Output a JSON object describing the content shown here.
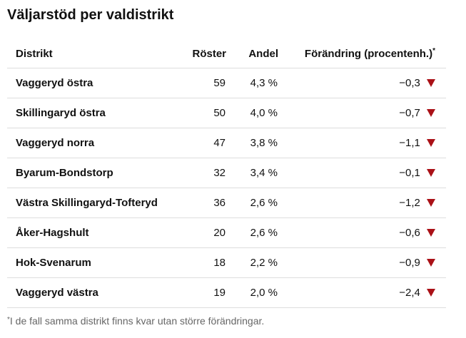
{
  "page": {
    "title": "Väljarstöd per valdistrikt",
    "footnote_marker": "*",
    "footnote": "I de fall samma distrikt finns kvar utan större förändringar."
  },
  "table": {
    "columns": {
      "district": "Distrikt",
      "votes": "Röster",
      "share": "Andel",
      "change": "Förändring (procentenh.)"
    },
    "change_note_marker": "*",
    "rows": [
      {
        "district": "Vaggeryd östra",
        "votes": "59",
        "share": "4,3 %",
        "change": "−0,3",
        "trend": "down"
      },
      {
        "district": "Skillingaryd östra",
        "votes": "50",
        "share": "4,0 %",
        "change": "−0,7",
        "trend": "down"
      },
      {
        "district": "Vaggeryd norra",
        "votes": "47",
        "share": "3,8 %",
        "change": "−1,1",
        "trend": "down"
      },
      {
        "district": "Byarum-Bondstorp",
        "votes": "32",
        "share": "3,4 %",
        "change": "−0,1",
        "trend": "down"
      },
      {
        "district": "Västra Skillingaryd-Tofteryd",
        "votes": "36",
        "share": "2,6 %",
        "change": "−1,2",
        "trend": "down"
      },
      {
        "district": "Åker-Hagshult",
        "votes": "20",
        "share": "2,6 %",
        "change": "−0,6",
        "trend": "down"
      },
      {
        "district": "Hok-Svenarum",
        "votes": "18",
        "share": "2,2 %",
        "change": "−0,9",
        "trend": "down"
      },
      {
        "district": "Vaggeryd västra",
        "votes": "19",
        "share": "2,0 %",
        "change": "−2,4",
        "trend": "down"
      }
    ]
  },
  "colors": {
    "trend_down": "#aa1117",
    "divider": "#dddddd",
    "footnote_text": "#666666",
    "text": "#111111"
  }
}
